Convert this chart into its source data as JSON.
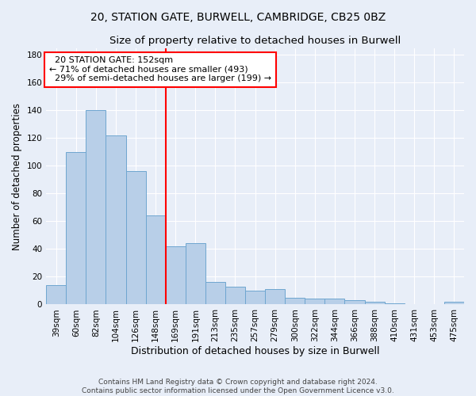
{
  "title1": "20, STATION GATE, BURWELL, CAMBRIDGE, CB25 0BZ",
  "title2": "Size of property relative to detached houses in Burwell",
  "xlabel": "Distribution of detached houses by size in Burwell",
  "ylabel": "Number of detached properties",
  "categories": [
    "39sqm",
    "60sqm",
    "82sqm",
    "104sqm",
    "126sqm",
    "148sqm",
    "169sqm",
    "191sqm",
    "213sqm",
    "235sqm",
    "257sqm",
    "279sqm",
    "300sqm",
    "322sqm",
    "344sqm",
    "366sqm",
    "388sqm",
    "410sqm",
    "431sqm",
    "453sqm",
    "475sqm"
  ],
  "values": [
    14,
    110,
    140,
    122,
    96,
    64,
    42,
    44,
    16,
    13,
    10,
    11,
    5,
    4,
    4,
    3,
    2,
    1,
    0,
    0,
    2
  ],
  "bar_color": "#b8cfe8",
  "bar_edge_color": "#6ea6d0",
  "vline_x": 5.5,
  "vline_color": "red",
  "annotation_text": "  20 STATION GATE: 152sqm\n← 71% of detached houses are smaller (493)\n  29% of semi-detached houses are larger (199) →",
  "annotation_box_color": "white",
  "annotation_box_edge_color": "red",
  "ylim": [
    0,
    185
  ],
  "yticks": [
    0,
    20,
    40,
    60,
    80,
    100,
    120,
    140,
    160,
    180
  ],
  "bg_color": "#e8eef8",
  "footnote": "Contains HM Land Registry data © Crown copyright and database right 2024.\nContains public sector information licensed under the Open Government Licence v3.0.",
  "title1_fontsize": 10,
  "title2_fontsize": 9.5,
  "xlabel_fontsize": 9,
  "ylabel_fontsize": 8.5,
  "annotation_fontsize": 8,
  "footnote_fontsize": 6.5,
  "tick_labelsize": 7.5
}
